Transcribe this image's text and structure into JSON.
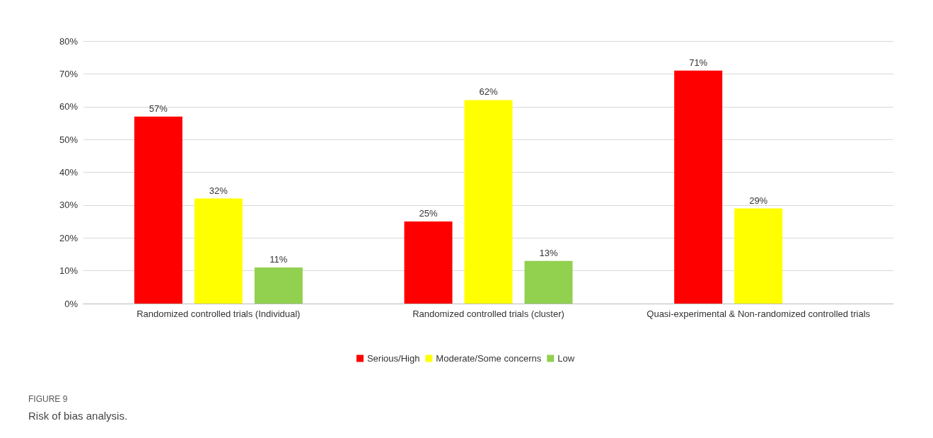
{
  "chart_data": {
    "type": "bar",
    "categories": [
      "Randomized controlled trials (Individual)",
      "Randomized controlled trials (cluster)",
      "Quasi-experimental & Non-randomized controlled trials"
    ],
    "series": [
      {
        "name": "Serious/High",
        "color": "#ff0000",
        "values": [
          57,
          25,
          71
        ],
        "value_labels": [
          "57%",
          "25%",
          "71%"
        ]
      },
      {
        "name": "Moderate/Some concerns",
        "color": "#ffff00",
        "values": [
          32,
          62,
          29
        ],
        "value_labels": [
          "32%",
          "62%",
          "29%"
        ]
      },
      {
        "name": "Low",
        "color": "#92d050",
        "values": [
          11,
          13,
          null
        ],
        "value_labels": [
          "11%",
          "13%",
          null
        ]
      }
    ],
    "ylim": [
      0,
      80
    ],
    "yticks": [
      {
        "value": 0,
        "label": "0%"
      },
      {
        "value": 10,
        "label": "10%"
      },
      {
        "value": 20,
        "label": "20%"
      },
      {
        "value": 30,
        "label": "30%"
      },
      {
        "value": 40,
        "label": "40%"
      },
      {
        "value": 50,
        "label": "50%"
      },
      {
        "value": 60,
        "label": "60%"
      },
      {
        "value": 70,
        "label": "70%"
      },
      {
        "value": 80,
        "label": "80%"
      }
    ],
    "grid": "y",
    "legend": "bottom",
    "annotations": [
      "FIGURE 9",
      "Risk of bias analysis."
    ]
  }
}
